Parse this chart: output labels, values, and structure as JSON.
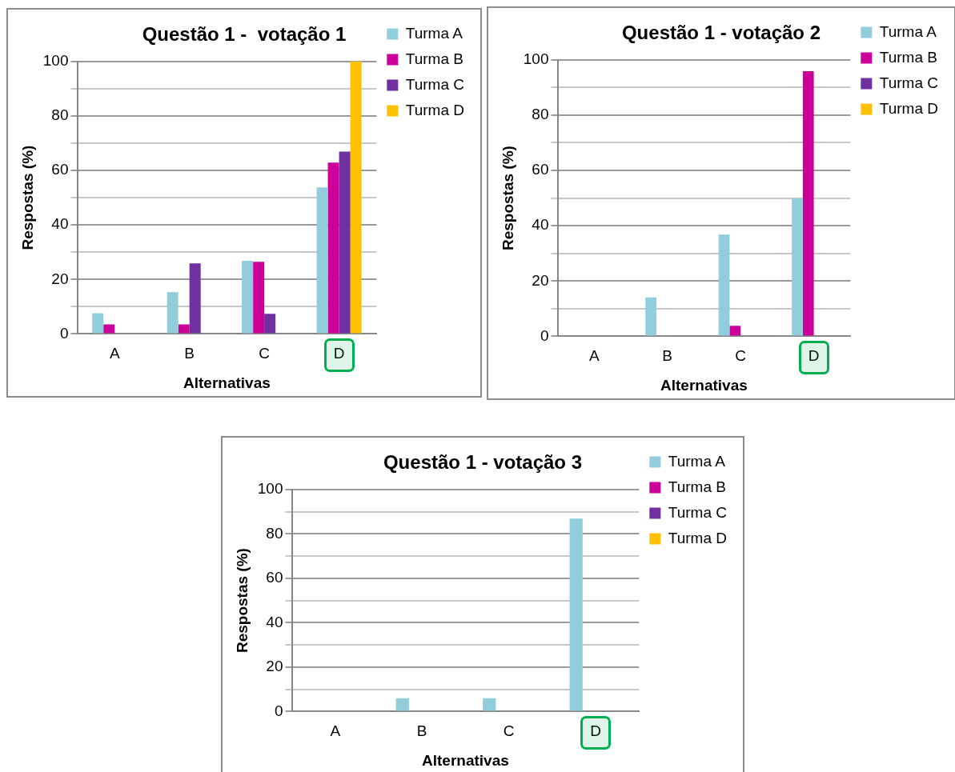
{
  "chart_data": [
    {
      "type": "bar",
      "title": "Questão 1 -  votação 1",
      "xlabel": "Alternativas",
      "ylabel": "Respostas (%)",
      "categories": [
        "A",
        "B",
        "C",
        "D"
      ],
      "series": [
        {
          "name": "Turma A",
          "color": "#92cddc",
          "values": [
            7.6,
            15.3,
            26.8,
            53.8
          ]
        },
        {
          "name": "Turma B",
          "color": "#cc0099",
          "values": [
            3.5,
            3.5,
            26.5,
            62.9
          ]
        },
        {
          "name": "Turma C",
          "color": "#7030a0",
          "values": [
            0,
            25.9,
            7.4,
            66.9
          ]
        },
        {
          "name": "Turma D",
          "color": "#ffc000",
          "values": [
            0,
            0,
            0,
            100
          ]
        }
      ],
      "ylim": [
        0,
        100
      ],
      "yticks": [
        0,
        {
          "value": 10,
          "label": null
        },
        20,
        {
          "value": 30,
          "label": null
        },
        40,
        {
          "value": 50,
          "label": null
        },
        60,
        {
          "value": 70,
          "label": null
        },
        80,
        {
          "value": 90,
          "label": null
        },
        100
      ],
      "grid": "y",
      "legend": "right"
    },
    {
      "type": "bar",
      "title": "Questão 1 - votação 2",
      "xlabel": "Alternativas",
      "ylabel": "Respostas (%)",
      "categories": [
        "A",
        "B",
        "C",
        "D"
      ],
      "series": [
        {
          "name": "Turma A",
          "color": "#92cddc",
          "values": [
            0,
            14.1,
            36.8,
            49.8
          ]
        },
        {
          "name": "Turma B",
          "color": "#cc0099",
          "values": [
            0,
            0,
            3.8,
            95.9
          ]
        },
        {
          "name": "Turma C",
          "color": "#7030a0",
          "values": [
            0,
            0,
            0,
            0
          ]
        },
        {
          "name": "Turma D",
          "color": "#ffc000",
          "values": [
            0,
            0,
            0,
            0
          ]
        }
      ],
      "ylim": [
        0,
        100
      ],
      "yticks": [
        0,
        {
          "value": 10,
          "label": null
        },
        20,
        {
          "value": 30,
          "label": null
        },
        40,
        {
          "value": 50,
          "label": null
        },
        60,
        {
          "value": 70,
          "label": null
        },
        80,
        {
          "value": 90,
          "label": null
        },
        100
      ],
      "grid": "y",
      "legend": "right"
    },
    {
      "type": "bar",
      "title": "Questão 1 - votação 3",
      "xlabel": "Alternativas",
      "ylabel": "Respostas (%)",
      "categories": [
        "A",
        "B",
        "C",
        "D"
      ],
      "series": [
        {
          "name": "Turma A",
          "color": "#92cddc",
          "values": [
            0,
            6.0,
            6.0,
            86.9
          ]
        },
        {
          "name": "Turma B",
          "color": "#cc0099",
          "values": [
            0,
            0,
            0,
            0
          ]
        },
        {
          "name": "Turma C",
          "color": "#7030a0",
          "values": [
            0,
            0,
            0,
            0
          ]
        },
        {
          "name": "Turma D",
          "color": "#ffc000",
          "values": [
            0,
            0,
            0,
            0
          ]
        }
      ],
      "ylim": [
        0,
        100
      ],
      "yticks": [
        0,
        {
          "value": 10,
          "label": null
        },
        20,
        {
          "value": 30,
          "label": null
        },
        40,
        {
          "value": 50,
          "label": null
        },
        60,
        {
          "value": 70,
          "label": null
        },
        80,
        {
          "value": 90,
          "label": null
        },
        100
      ],
      "grid": "y",
      "legend": "right"
    }
  ]
}
